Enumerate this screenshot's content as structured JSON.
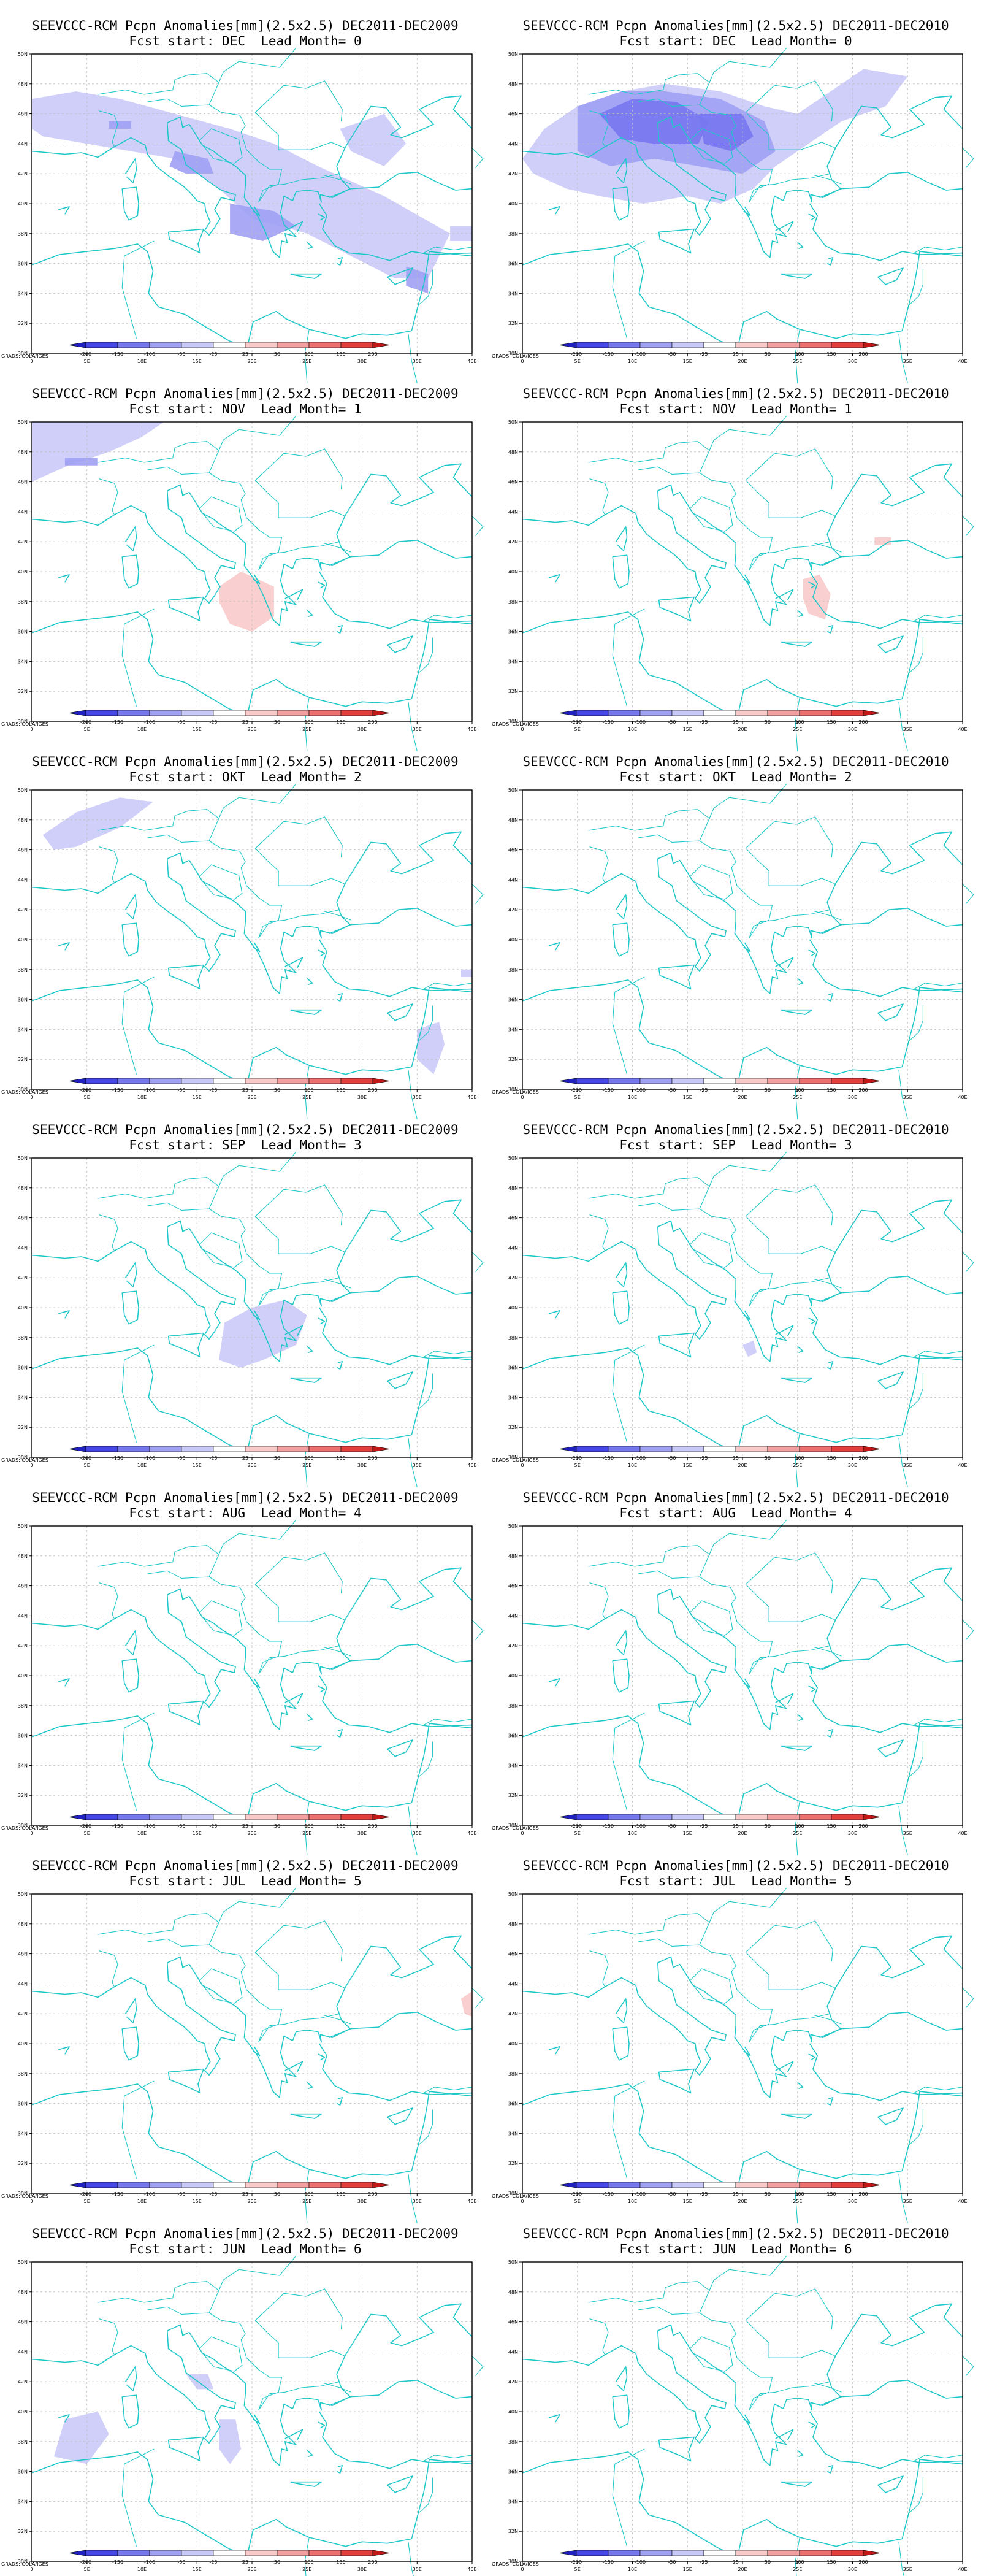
{
  "colors": {
    "coast": "#1fc8c8",
    "border": "#9a9a9a",
    "grid": "#bdbdbd",
    "scale": [
      "#2121c0",
      "#4646e6",
      "#7878f0",
      "#a0a0f5",
      "#cacaf8",
      "#ffffff",
      "#f8caca",
      "#f4a0a0",
      "#ee7070",
      "#e54040",
      "#c21818"
    ]
  },
  "map": {
    "lon_range": [
      0,
      40
    ],
    "lat_range": [
      30,
      50
    ],
    "lon_ticks": [
      "0",
      "5E",
      "10E",
      "15E",
      "20E",
      "25E",
      "30E",
      "35E",
      "40E"
    ],
    "lat_ticks": [
      "30N",
      "32N",
      "34N",
      "36N",
      "38N",
      "40N",
      "42N",
      "44N",
      "46N",
      "48N",
      "50N"
    ]
  },
  "legend": {
    "labels": [
      "-200",
      "-150",
      "-100",
      "-50",
      "-25",
      "25",
      "50",
      "100",
      "150",
      "200"
    ],
    "credit": "GRADS: COLA/IGES"
  },
  "panels": [
    {
      "id": "p-dec2009",
      "title1": "SEEVCCC-RCM Pcpn Anomalies[mm](2.5x2.5) DEC2011-DEC2009",
      "title2": "Fcst start: DEC  Lead Month= 0",
      "anomalies": [
        {
          "level": "-25",
          "pts": [
            [
              0,
              47
            ],
            [
              4,
              47.5
            ],
            [
              8,
              47
            ],
            [
              13,
              46
            ],
            [
              18,
              45
            ],
            [
              22,
              44
            ],
            [
              26,
              42.5
            ],
            [
              32,
              40.5
            ],
            [
              38,
              38
            ],
            [
              36,
              35
            ],
            [
              33,
              35
            ],
            [
              29,
              36.5
            ],
            [
              25,
              38
            ],
            [
              20,
              39
            ],
            [
              17,
              41
            ],
            [
              13,
              43
            ],
            [
              9,
              43.5
            ],
            [
              5,
              44
            ],
            [
              1,
              44.5
            ],
            [
              0,
              45
            ]
          ]
        },
        {
          "level": "-25",
          "pts": [
            [
              28,
              45
            ],
            [
              32,
              46
            ],
            [
              34,
              44
            ],
            [
              32,
              42.5
            ],
            [
              29,
              43.5
            ]
          ]
        },
        {
          "level": "-25",
          "pts": [
            [
              38,
              38.5
            ],
            [
              40,
              38.5
            ],
            [
              40,
              37.5
            ],
            [
              38,
              37.5
            ]
          ]
        },
        {
          "level": "-50",
          "pts": [
            [
              13,
              43.5
            ],
            [
              16,
              43
            ],
            [
              16.5,
              42
            ],
            [
              14,
              42
            ],
            [
              12.5,
              42.5
            ]
          ]
        },
        {
          "level": "-50",
          "pts": [
            [
              18,
              40
            ],
            [
              22,
              39.5
            ],
            [
              24,
              38.5
            ],
            [
              21,
              37.5
            ],
            [
              18,
              38
            ]
          ]
        },
        {
          "level": "-50",
          "pts": [
            [
              34,
              35.8
            ],
            [
              36,
              35.3
            ],
            [
              36,
              34
            ],
            [
              34,
              34.5
            ]
          ]
        },
        {
          "level": "-50",
          "pts": [
            [
              7,
              45.5
            ],
            [
              9,
              45.5
            ],
            [
              9,
              45
            ],
            [
              7,
              45
            ]
          ]
        }
      ]
    },
    {
      "id": "p-dec2010",
      "title1": "SEEVCCC-RCM Pcpn Anomalies[mm](2.5x2.5) DEC2011-DEC2010",
      "title2": "Fcst start: DEC  Lead Month= 0",
      "anomalies": [
        {
          "level": "-25",
          "pts": [
            [
              0,
              43
            ],
            [
              2,
              45
            ],
            [
              5,
              46.5
            ],
            [
              9,
              47.5
            ],
            [
              13,
              48
            ],
            [
              18,
              47.5
            ],
            [
              22,
              46.5
            ],
            [
              25,
              46
            ],
            [
              27,
              47
            ],
            [
              31,
              49
            ],
            [
              35,
              48.5
            ],
            [
              33,
              46.5
            ],
            [
              29,
              45.5
            ],
            [
              26,
              44
            ],
            [
              23,
              42.5
            ],
            [
              21,
              41
            ],
            [
              18,
              40
            ],
            [
              15,
              40.5
            ],
            [
              11,
              40
            ],
            [
              7,
              40.5
            ],
            [
              4,
              41
            ],
            [
              1,
              42
            ]
          ]
        },
        {
          "level": "-50",
          "pts": [
            [
              5,
              46.5
            ],
            [
              9,
              47.5
            ],
            [
              13,
              47.5
            ],
            [
              18,
              47
            ],
            [
              22,
              45.5
            ],
            [
              23,
              43.5
            ],
            [
              20,
              42
            ],
            [
              16,
              42.5
            ],
            [
              12,
              43
            ],
            [
              8,
              42.5
            ],
            [
              5,
              43.5
            ]
          ]
        },
        {
          "level": "-100",
          "pts": [
            [
              7,
              46
            ],
            [
              10,
              47
            ],
            [
              14,
              46.8
            ],
            [
              17,
              45.5
            ],
            [
              16,
              44
            ],
            [
              12,
              44
            ],
            [
              9,
              44.3
            ]
          ]
        },
        {
          "level": "-100",
          "pts": [
            [
              16,
              46
            ],
            [
              20,
              46
            ],
            [
              21,
              44.5
            ],
            [
              19,
              43.5
            ],
            [
              16.5,
              44
            ]
          ]
        }
      ]
    },
    {
      "id": "p-nov2009",
      "title1": "SEEVCCC-RCM Pcpn Anomalies[mm](2.5x2.5) DEC2011-DEC2009",
      "title2": "Fcst start: NOV  Lead Month= 1",
      "anomalies": [
        {
          "level": "-25",
          "pts": [
            [
              0,
              46
            ],
            [
              3,
              47
            ],
            [
              7,
              48
            ],
            [
              10,
              49
            ],
            [
              12,
              50
            ],
            [
              0,
              50
            ]
          ]
        },
        {
          "level": "-50",
          "pts": [
            [
              3,
              47.6
            ],
            [
              6,
              47.6
            ],
            [
              6,
              47.1
            ],
            [
              3,
              47.1
            ]
          ]
        },
        {
          "level": "25",
          "pts": [
            [
              17,
              39
            ],
            [
              19,
              40
            ],
            [
              22,
              39
            ],
            [
              22,
              37
            ],
            [
              20,
              36
            ],
            [
              18,
              36.5
            ],
            [
              17,
              38
            ]
          ]
        }
      ]
    },
    {
      "id": "p-nov2010",
      "title1": "SEEVCCC-RCM Pcpn Anomalies[mm](2.5x2.5) DEC2011-DEC2010",
      "title2": "Fcst start: NOV  Lead Month= 1",
      "anomalies": [
        {
          "level": "25",
          "pts": [
            [
              25.5,
              39.5
            ],
            [
              27,
              39.8
            ],
            [
              28,
              38.5
            ],
            [
              27.5,
              36.8
            ],
            [
              26,
              37.2
            ],
            [
              25.5,
              38.2
            ]
          ]
        },
        {
          "level": "25",
          "pts": [
            [
              32,
              42.3
            ],
            [
              33.5,
              42.3
            ],
            [
              33.5,
              41.8
            ],
            [
              32,
              41.8
            ]
          ]
        }
      ]
    },
    {
      "id": "p-okt2009",
      "title1": "SEEVCCC-RCM Pcpn Anomalies[mm](2.5x2.5) DEC2011-DEC2009",
      "title2": "Fcst start: OKT  Lead Month= 2",
      "anomalies": [
        {
          "level": "-25",
          "pts": [
            [
              1,
              47
            ],
            [
              4,
              48.5
            ],
            [
              8,
              49.5
            ],
            [
              11,
              49.2
            ],
            [
              8,
              47.5
            ],
            [
              4,
              46.2
            ],
            [
              2,
              46
            ]
          ]
        },
        {
          "level": "-25",
          "pts": [
            [
              35,
              34
            ],
            [
              37,
              34.5
            ],
            [
              37.5,
              33
            ],
            [
              36.5,
              31
            ],
            [
              35,
              32
            ]
          ]
        },
        {
          "level": "-25",
          "pts": [
            [
              39,
              38
            ],
            [
              40,
              38
            ],
            [
              40,
              37.5
            ],
            [
              39,
              37.5
            ]
          ]
        }
      ]
    },
    {
      "id": "p-okt2010",
      "title1": "SEEVCCC-RCM Pcpn Anomalies[mm](2.5x2.5) DEC2011-DEC2010",
      "title2": "Fcst start: OKT  Lead Month= 2",
      "anomalies": []
    },
    {
      "id": "p-sep2009",
      "title1": "SEEVCCC-RCM Pcpn Anomalies[mm](2.5x2.5) DEC2011-DEC2009",
      "title2": "Fcst start: SEP  Lead Month= 3",
      "anomalies": [
        {
          "level": "-25",
          "pts": [
            [
              17.5,
              39
            ],
            [
              20,
              40
            ],
            [
              23,
              40.5
            ],
            [
              25,
              39.5
            ],
            [
              24,
              37.5
            ],
            [
              21,
              36.5
            ],
            [
              19,
              36
            ],
            [
              17,
              36.5
            ]
          ]
        }
      ]
    },
    {
      "id": "p-sep2010",
      "title1": "SEEVCCC-RCM Pcpn Anomalies[mm](2.5x2.5) DEC2011-DEC2010",
      "title2": "Fcst start: SEP  Lead Month= 3",
      "anomalies": [
        {
          "level": "-25",
          "pts": [
            [
              20,
              37.5
            ],
            [
              21,
              37.8
            ],
            [
              21.3,
              37
            ],
            [
              20.5,
              36.7
            ]
          ]
        }
      ]
    },
    {
      "id": "p-aug2009",
      "title1": "SEEVCCC-RCM Pcpn Anomalies[mm](2.5x2.5) DEC2011-DEC2009",
      "title2": "Fcst start: AUG  Lead Month= 4",
      "anomalies": []
    },
    {
      "id": "p-aug2010",
      "title1": "SEEVCCC-RCM Pcpn Anomalies[mm](2.5x2.5) DEC2011-DEC2010",
      "title2": "Fcst start: AUG  Lead Month= 4",
      "anomalies": []
    },
    {
      "id": "p-jul2009",
      "title1": "SEEVCCC-RCM Pcpn Anomalies[mm](2.5x2.5) DEC2011-DEC2009",
      "title2": "Fcst start: JUL  Lead Month= 5",
      "anomalies": [
        {
          "level": "25",
          "pts": [
            [
              39,
              43
            ],
            [
              40,
              43.5
            ],
            [
              40,
              41.8
            ],
            [
              39.3,
              42
            ]
          ]
        }
      ]
    },
    {
      "id": "p-jul2010",
      "title1": "SEEVCCC-RCM Pcpn Anomalies[mm](2.5x2.5) DEC2011-DEC2010",
      "title2": "Fcst start: JUL  Lead Month= 5",
      "anomalies": []
    },
    {
      "id": "p-jun2009",
      "title1": "SEEVCCC-RCM Pcpn Anomalies[mm](2.5x2.5) DEC2011-DEC2009",
      "title2": "Fcst start: JUN  Lead Month= 6",
      "anomalies": [
        {
          "level": "-25",
          "pts": [
            [
              2,
              37
            ],
            [
              3,
              39.5
            ],
            [
              6,
              40
            ],
            [
              7,
              38.5
            ],
            [
              5,
              36.5
            ]
          ]
        },
        {
          "level": "-25",
          "pts": [
            [
              14,
              42.5
            ],
            [
              16,
              42.5
            ],
            [
              16.5,
              41.5
            ],
            [
              15,
              41.5
            ]
          ]
        },
        {
          "level": "-25",
          "pts": [
            [
              17,
              39.5
            ],
            [
              18.5,
              39.5
            ],
            [
              19,
              37.5
            ],
            [
              18,
              36.5
            ],
            [
              17,
              37.5
            ]
          ]
        }
      ]
    },
    {
      "id": "p-jun2010",
      "title1": "SEEVCCC-RCM Pcpn Anomalies[mm](2.5x2.5) DEC2011-DEC2010",
      "title2": "Fcst start: JUN  Lead Month= 6",
      "anomalies": []
    }
  ]
}
